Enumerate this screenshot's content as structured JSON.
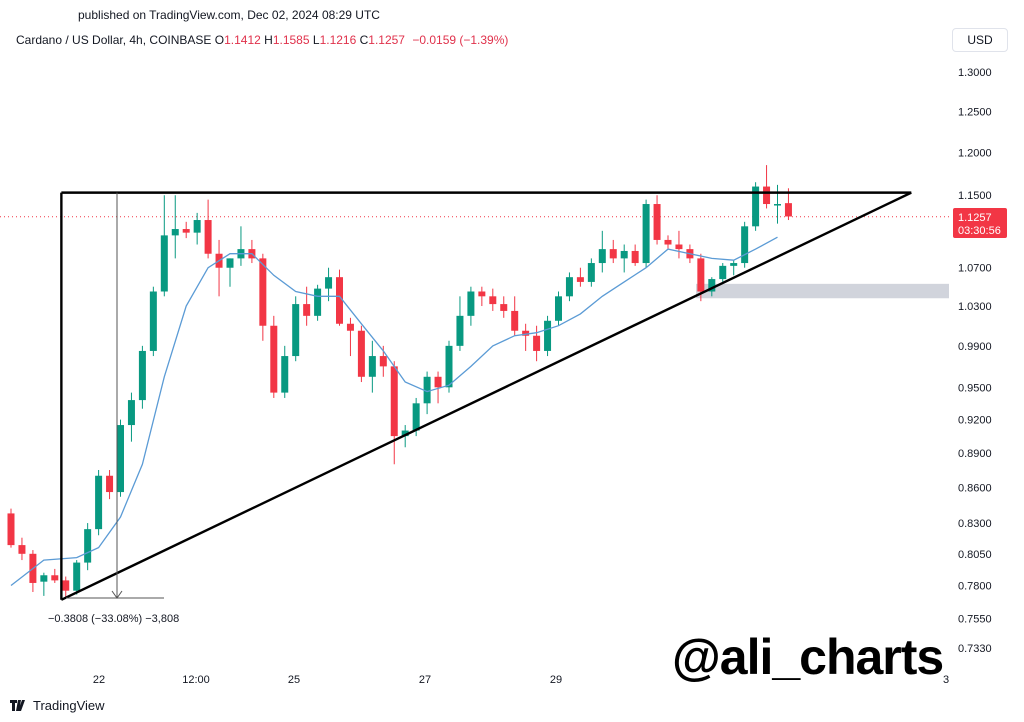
{
  "published": "published on TradingView.com, Dec 02, 2024 08:29 UTC",
  "legend": {
    "symbol": "Cardano / US Dollar, 4h, COINBASE",
    "o_label": "O",
    "o": "1.1412",
    "h_label": "H",
    "h": "1.1585",
    "l_label": "L",
    "l": "1.1216",
    "c_label": "C",
    "c": "1.1257",
    "change": "−0.0159 (−1.39%)"
  },
  "currency_button": "USD",
  "price_tag": {
    "price": "1.1257",
    "countdown": "03:30:56"
  },
  "measure_label": "−0.3808 (−33.08%) −3,808",
  "watermark": "@ali_charts",
  "footer_brand": "TradingView",
  "colors": {
    "up": "#089981",
    "down": "#f23645",
    "ma": "#5b9bd5",
    "zone": "#d1d4dc",
    "pricetag": "#f23645"
  },
  "chart_data": {
    "type": "candlestick",
    "y_scale": "log",
    "ylim": [
      0.72,
      1.35
    ],
    "price_ticks": [
      "1.3000",
      "1.2500",
      "1.2000",
      "1.1500",
      "1.0700",
      "1.0300",
      "0.9900",
      "0.9500",
      "0.9200",
      "0.8900",
      "0.8600",
      "0.8300",
      "0.8050",
      "0.7800",
      "0.7550",
      "0.7330"
    ],
    "x_ticks": [
      "22",
      "12:00",
      "25",
      "27",
      "29",
      "3"
    ],
    "candles": [
      [
        0.838,
        0.842,
        0.81,
        0.812
      ],
      [
        0.812,
        0.818,
        0.8,
        0.805
      ],
      [
        0.805,
        0.808,
        0.775,
        0.782
      ],
      [
        0.783,
        0.79,
        0.772,
        0.788
      ],
      [
        0.788,
        0.793,
        0.782,
        0.784
      ],
      [
        0.784,
        0.787,
        0.77,
        0.776
      ],
      [
        0.776,
        0.8,
        0.773,
        0.798
      ],
      [
        0.798,
        0.83,
        0.792,
        0.825
      ],
      [
        0.825,
        0.875,
        0.82,
        0.87
      ],
      [
        0.87,
        0.875,
        0.85,
        0.856
      ],
      [
        0.856,
        0.92,
        0.852,
        0.915
      ],
      [
        0.915,
        0.945,
        0.9,
        0.938
      ],
      [
        0.938,
        0.99,
        0.93,
        0.985
      ],
      [
        0.985,
        1.05,
        0.98,
        1.045
      ],
      [
        1.045,
        1.15,
        1.04,
        1.105
      ],
      [
        1.105,
        1.15,
        1.08,
        1.112
      ],
      [
        1.112,
        1.12,
        1.102,
        1.108
      ],
      [
        1.108,
        1.13,
        1.095,
        1.122
      ],
      [
        1.122,
        1.145,
        1.08,
        1.085
      ],
      [
        1.085,
        1.1,
        1.04,
        1.07
      ],
      [
        1.07,
        1.08,
        1.05,
        1.08
      ],
      [
        1.08,
        1.115,
        1.072,
        1.09
      ],
      [
        1.09,
        1.1,
        1.075,
        1.08
      ],
      [
        1.08,
        1.085,
        0.995,
        1.01
      ],
      [
        1.01,
        1.02,
        0.94,
        0.945
      ],
      [
        0.945,
        0.99,
        0.94,
        0.98
      ],
      [
        0.98,
        1.04,
        0.975,
        1.032
      ],
      [
        1.032,
        1.05,
        1.01,
        1.02
      ],
      [
        1.02,
        1.052,
        1.015,
        1.048
      ],
      [
        1.048,
        1.07,
        1.035,
        1.06
      ],
      [
        1.06,
        1.068,
        1.01,
        1.012
      ],
      [
        1.012,
        1.018,
        0.98,
        1.005
      ],
      [
        1.005,
        1.01,
        0.955,
        0.96
      ],
      [
        0.96,
        0.995,
        0.945,
        0.98
      ],
      [
        0.98,
        0.99,
        0.96,
        0.97
      ],
      [
        0.97,
        0.975,
        0.88,
        0.905
      ],
      [
        0.905,
        0.915,
        0.895,
        0.91
      ],
      [
        0.91,
        0.94,
        0.905,
        0.935
      ],
      [
        0.935,
        0.965,
        0.925,
        0.96
      ],
      [
        0.96,
        0.965,
        0.935,
        0.95
      ],
      [
        0.95,
        0.995,
        0.945,
        0.99
      ],
      [
        0.99,
        1.04,
        0.985,
        1.02
      ],
      [
        1.02,
        1.05,
        1.01,
        1.045
      ],
      [
        1.045,
        1.05,
        1.03,
        1.04
      ],
      [
        1.04,
        1.048,
        1.025,
        1.032
      ],
      [
        1.032,
        1.04,
        1.018,
        1.025
      ],
      [
        1.025,
        1.04,
        1.0,
        1.005
      ],
      [
        1.005,
        1.012,
        0.985,
        1.0
      ],
      [
        1.0,
        1.01,
        0.975,
        0.985
      ],
      [
        0.985,
        1.02,
        0.98,
        1.015
      ],
      [
        1.015,
        1.045,
        1.01,
        1.04
      ],
      [
        1.04,
        1.065,
        1.035,
        1.06
      ],
      [
        1.06,
        1.07,
        1.05,
        1.055
      ],
      [
        1.055,
        1.08,
        1.05,
        1.075
      ],
      [
        1.075,
        1.11,
        1.065,
        1.09
      ],
      [
        1.09,
        1.1,
        1.075,
        1.08
      ],
      [
        1.08,
        1.095,
        1.065,
        1.088
      ],
      [
        1.088,
        1.095,
        1.072,
        1.075
      ],
      [
        1.075,
        1.145,
        1.07,
        1.14
      ],
      [
        1.14,
        1.15,
        1.095,
        1.1
      ],
      [
        1.1,
        1.105,
        1.09,
        1.095
      ],
      [
        1.095,
        1.11,
        1.08,
        1.09
      ],
      [
        1.09,
        1.095,
        1.075,
        1.08
      ],
      [
        1.08,
        1.085,
        1.035,
        1.045
      ],
      [
        1.045,
        1.06,
        1.04,
        1.058
      ],
      [
        1.058,
        1.075,
        1.055,
        1.072
      ],
      [
        1.072,
        1.078,
        1.062,
        1.075
      ],
      [
        1.075,
        1.12,
        1.07,
        1.115
      ],
      [
        1.115,
        1.165,
        1.11,
        1.16
      ],
      [
        1.16,
        1.185,
        1.135,
        1.14
      ],
      [
        1.14,
        1.162,
        1.118,
        1.14
      ],
      [
        1.141,
        1.158,
        1.122,
        1.126
      ]
    ],
    "ma_line": [
      [
        0,
        0.78
      ],
      [
        3,
        0.8
      ],
      [
        6,
        0.802
      ],
      [
        8,
        0.81
      ],
      [
        10,
        0.835
      ],
      [
        12,
        0.88
      ],
      [
        14,
        0.96
      ],
      [
        16,
        1.03
      ],
      [
        18,
        1.07
      ],
      [
        20,
        1.085
      ],
      [
        22,
        1.085
      ],
      [
        24,
        1.062
      ],
      [
        26,
        1.045
      ],
      [
        28,
        1.04
      ],
      [
        30,
        1.04
      ],
      [
        32,
        1.012
      ],
      [
        34,
        0.985
      ],
      [
        36,
        0.955
      ],
      [
        38,
        0.946
      ],
      [
        40,
        0.952
      ],
      [
        42,
        0.97
      ],
      [
        44,
        0.99
      ],
      [
        46,
        1.0
      ],
      [
        48,
        1.003
      ],
      [
        50,
        1.01
      ],
      [
        52,
        1.022
      ],
      [
        54,
        1.04
      ],
      [
        56,
        1.055
      ],
      [
        58,
        1.07
      ],
      [
        60,
        1.09
      ],
      [
        62,
        1.085
      ],
      [
        64,
        1.08
      ],
      [
        66,
        1.078
      ],
      [
        68,
        1.09
      ],
      [
        70,
        1.103
      ]
    ],
    "triangle": {
      "apex_index": 74,
      "top_price": 1.153,
      "bottom_price": 0.769,
      "left_index": 4.6
    },
    "support_zone": [
      1.038,
      1.053
    ],
    "current_price": 1.1257
  }
}
